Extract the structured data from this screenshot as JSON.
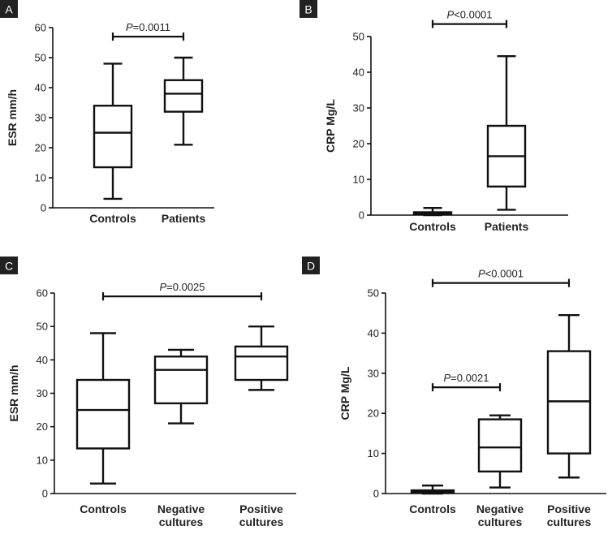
{
  "chart_data": [
    {
      "panel": "A",
      "type": "box",
      "ylabel": "ESR mm/h",
      "ylim": [
        0,
        60
      ],
      "yticks": [
        0,
        10,
        20,
        30,
        40,
        50,
        60
      ],
      "categories": [
        [
          "Controls"
        ],
        [
          "Patients"
        ]
      ],
      "boxes": [
        {
          "min": 3,
          "q1": 13.5,
          "median": 25,
          "q3": 34,
          "max": 48
        },
        {
          "min": 21,
          "q1": 32,
          "median": 38,
          "q3": 42.5,
          "max": 50
        }
      ],
      "comparisons": [
        {
          "from": 0,
          "to": 1,
          "y": 57,
          "p_symbol": "P",
          "p_value": "=0.0011"
        }
      ]
    },
    {
      "panel": "B",
      "type": "box",
      "ylabel": "CRP Mg/L",
      "ylim": [
        0,
        50
      ],
      "yticks": [
        0,
        10,
        20,
        30,
        40,
        50
      ],
      "categories": [
        [
          "Controls"
        ],
        [
          "Patients"
        ]
      ],
      "boxes": [
        {
          "min": 0,
          "q1": 0.3,
          "median": 0.5,
          "q3": 0.8,
          "max": 2
        },
        {
          "min": 1.5,
          "q1": 8,
          "median": 16.5,
          "q3": 25,
          "max": 44.5
        }
      ],
      "comparisons": [
        {
          "from": 0,
          "to": 1,
          "y": 53.5,
          "p_symbol": "P",
          "p_value": "<0.0001"
        }
      ]
    },
    {
      "panel": "C",
      "type": "box",
      "ylabel": "ESR mm/h",
      "ylim": [
        0,
        60
      ],
      "yticks": [
        0,
        10,
        20,
        30,
        40,
        50,
        60
      ],
      "categories": [
        [
          "Controls"
        ],
        [
          "Negative",
          "cultures"
        ],
        [
          "Positive",
          "cultures"
        ]
      ],
      "boxes": [
        {
          "min": 3,
          "q1": 13.5,
          "median": 25,
          "q3": 34,
          "max": 48
        },
        {
          "min": 21,
          "q1": 27,
          "median": 37,
          "q3": 41,
          "max": 43
        },
        {
          "min": 31,
          "q1": 34,
          "median": 41,
          "q3": 44,
          "max": 50
        }
      ],
      "comparisons": [
        {
          "from": 0,
          "to": 2,
          "y": 59,
          "p_symbol": "P",
          "p_value": "=0.0025"
        }
      ]
    },
    {
      "panel": "D",
      "type": "box",
      "ylabel": "CRP Mg/L",
      "ylim": [
        0,
        50
      ],
      "yticks": [
        0,
        10,
        20,
        30,
        40,
        50
      ],
      "categories": [
        [
          "Controls"
        ],
        [
          "Negative",
          "cultures"
        ],
        [
          "Positive",
          "cultures"
        ]
      ],
      "boxes": [
        {
          "min": 0,
          "q1": 0.3,
          "median": 0.5,
          "q3": 0.8,
          "max": 2
        },
        {
          "min": 1.5,
          "q1": 5.5,
          "median": 11.5,
          "q3": 18.5,
          "max": 19.5
        },
        {
          "min": 4,
          "q1": 10,
          "median": 23,
          "q3": 35.5,
          "max": 44.5
        }
      ],
      "comparisons": [
        {
          "from": 0,
          "to": 1,
          "y": 26.5,
          "p_symbol": "P",
          "p_value": "=0.0021"
        },
        {
          "from": 0,
          "to": 2,
          "y": 52.5,
          "p_symbol": "P",
          "p_value": "<0.0001"
        }
      ]
    }
  ]
}
